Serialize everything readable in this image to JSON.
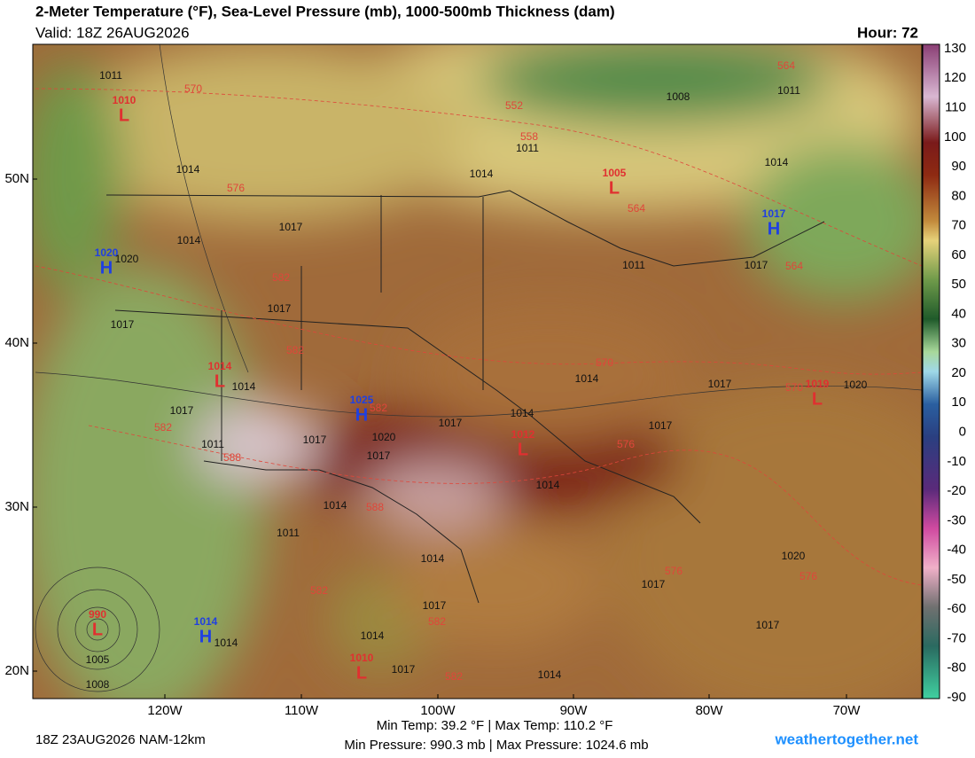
{
  "header": {
    "title": "2-Meter Temperature (°F), Sea-Level Pressure (mb), 1000-500mb Thickness (dam)",
    "valid": "Valid: 18Z 26AUG2026",
    "hour": "Hour: 72"
  },
  "colorbar": {
    "ticks": [
      130,
      120,
      110,
      100,
      90,
      80,
      70,
      60,
      50,
      40,
      30,
      20,
      10,
      0,
      -10,
      -20,
      -30,
      -40,
      -50,
      -60,
      -70,
      -80,
      -90
    ]
  },
  "lat_labels": [
    "50N",
    "40N",
    "30N",
    "20N"
  ],
  "lon_labels": [
    "120W",
    "110W",
    "100W",
    "90W",
    "80W",
    "70W"
  ],
  "pressure_centers": [
    {
      "type": "L",
      "value": "1010"
    },
    {
      "type": "H",
      "value": "1020"
    },
    {
      "type": "L",
      "value": "1005"
    },
    {
      "type": "H",
      "value": "1017"
    },
    {
      "type": "L",
      "value": "1014"
    },
    {
      "type": "H",
      "value": "1025"
    },
    {
      "type": "L",
      "value": "1012"
    },
    {
      "type": "L",
      "value": "1019"
    },
    {
      "type": "L",
      "value": "990"
    },
    {
      "type": "H",
      "value": "1014"
    },
    {
      "type": "L",
      "value": "1010"
    }
  ],
  "isobar_labels": [
    "1011",
    "1014",
    "1014",
    "1017",
    "1020",
    "1017",
    "1017",
    "1014",
    "1017",
    "1011",
    "1017",
    "1020",
    "1017",
    "1017",
    "1014",
    "1014",
    "1017",
    "1017",
    "1014",
    "1014",
    "1011",
    "1014",
    "1017",
    "1014",
    "1017",
    "1014",
    "1017",
    "1017",
    "1020",
    "1020",
    "1017",
    "1014",
    "1011",
    "1008",
    "1011",
    "1014",
    "1011",
    "1005",
    "1008",
    "1014"
  ],
  "thickness_labels": [
    "570",
    "552",
    "558",
    "564",
    "576",
    "582",
    "582",
    "582",
    "588",
    "588",
    "582",
    "570",
    "576",
    "582",
    "582",
    "582",
    "576",
    "576",
    "564",
    "570",
    "564"
  ],
  "footer": {
    "run": "18Z 23AUG2026 NAM-12km",
    "temps": "Min Temp:  39.2 °F | Max Temp: 110.2 °F",
    "pressures": "Min Pressure: 990.3 mb | Max Pressure: 1024.6 mb",
    "site": "weathertogether.net"
  }
}
